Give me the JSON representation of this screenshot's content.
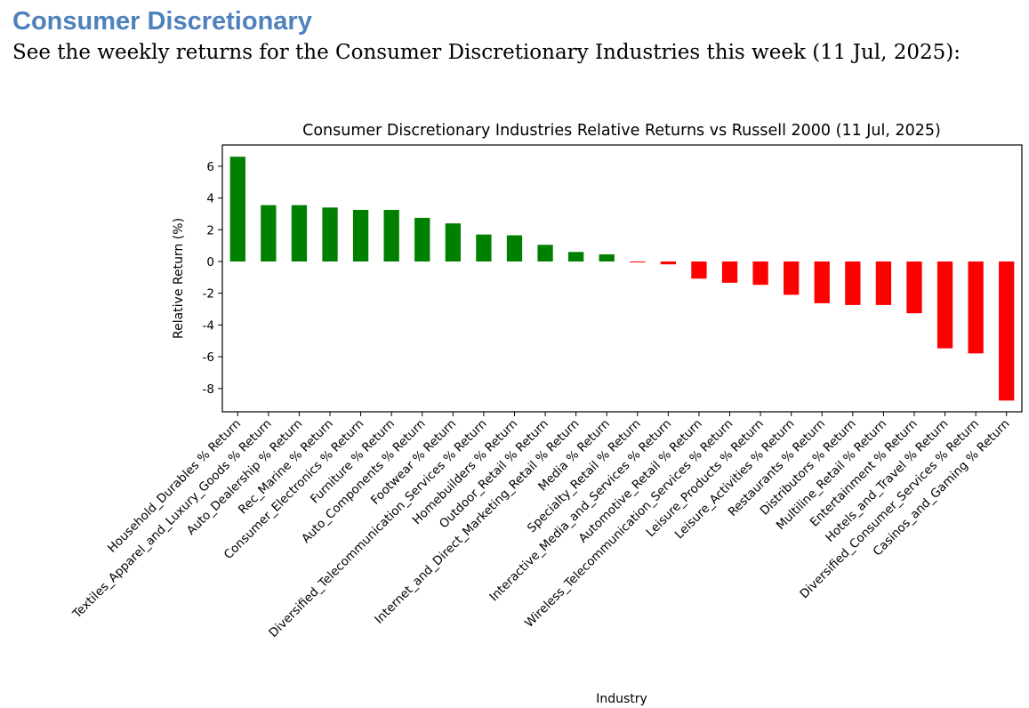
{
  "document": {
    "heading": "Consumer Discretionary",
    "intro": "See the weekly returns for the Consumer Discretionary Industries this week (11 Jul, 2025):"
  },
  "chart_data": {
    "type": "bar",
    "title": "Consumer Discretionary Industries Relative Returns vs Russell 2000 (11 Jul, 2025)",
    "xlabel": "Industry",
    "ylabel": "Relative Return (%)",
    "ylim": [
      -9.47,
      7.34
    ],
    "yticks": [
      -8,
      -6,
      -4,
      -2,
      0,
      2,
      4,
      6
    ],
    "grid": false,
    "positive_color": "#008000",
    "negative_color": "#ff0000",
    "categories": [
      "Household_Durables % Return",
      "Textiles_Apparel_and_Luxury_Goods % Return",
      "Auto_Dealership % Return",
      "Rec_Marine % Return",
      "Consumer_Electronics % Return",
      "Furniture % Return",
      "Auto_Components % Return",
      "Footwear % Return",
      "Diversified_Telecommunication_Services % Return",
      "Homebuilders % Return",
      "Outdoor_Retail % Return",
      "Internet_and_Direct_Marketing_Retail % Return",
      "Media % Return",
      "Specialty_Retail % Return",
      "Interactive_Media_and_Services % Return",
      "Automotive_Retail % Return",
      "Wireless_Telecommunication_Services % Return",
      "Leisure_Products % Return",
      "Leisure_Activities % Return",
      "Restaurants % Return",
      "Distributors % Return",
      "Multiline_Retail % Return",
      "Entertainment % Return",
      "Hotels_and_Travel % Return",
      "Diversified_Consumer_Services % Return",
      "Casinos_and_Gaming % Return"
    ],
    "values": [
      6.6,
      3.55,
      3.55,
      3.4,
      3.25,
      3.25,
      2.75,
      2.4,
      1.7,
      1.65,
      1.05,
      0.6,
      0.45,
      -0.03,
      -0.18,
      -1.08,
      -1.34,
      -1.47,
      -2.1,
      -2.63,
      -2.74,
      -2.74,
      -3.26,
      -5.47,
      -5.79,
      -8.76
    ]
  }
}
